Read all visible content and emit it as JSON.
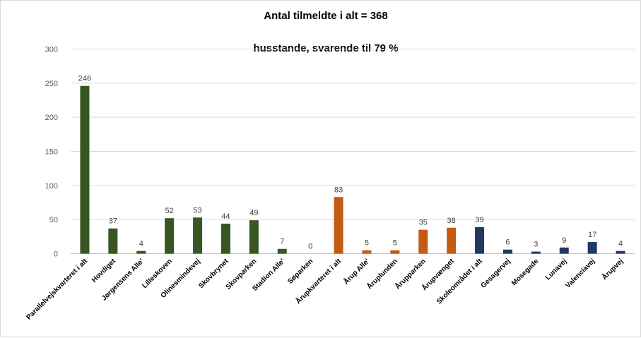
{
  "chart_data": {
    "type": "bar",
    "title": "Antal tilmeldte i alt = 368",
    "subtitle": "husstande, svarende til 79 %",
    "xlabel": "",
    "ylabel": "",
    "ylim": [
      0,
      300
    ],
    "yticks": [
      "0",
      "50",
      "100",
      "150",
      "200",
      "250",
      "300"
    ],
    "grid": true,
    "categories": [
      "Parallelvejskvarteret i alt",
      "Hovdiget",
      "Jørgensens Alle'",
      "Lilleskoven",
      "Olinesmindevej",
      "Skovbrynet",
      "Skovparken",
      "Stadion Alle'",
      "Søparken",
      "Årupkvarteret i alt",
      "Årup Alle'",
      "Åruplunden",
      "Årupparken",
      "Årupvænget",
      "Skoleområdet i alt",
      "Gesagervej",
      "Mosegade",
      "Lunavej",
      "Valenciavej",
      "Årupvej"
    ],
    "values": [
      246,
      37,
      4,
      52,
      53,
      44,
      49,
      7,
      0,
      83,
      5,
      5,
      35,
      38,
      39,
      6,
      3,
      9,
      17,
      4
    ],
    "data_labels": [
      "246",
      "37",
      "4",
      "52",
      "53",
      "44",
      "49",
      "7",
      "0",
      "83",
      "5",
      "5",
      "35",
      "38",
      "39",
      "6",
      "3",
      "9",
      "17",
      "4"
    ],
    "bar_colors": [
      "#375623",
      "#375623",
      "#375623",
      "#375623",
      "#375623",
      "#375623",
      "#375623",
      "#375623",
      "#375623",
      "#c55a11",
      "#c55a11",
      "#c55a11",
      "#c55a11",
      "#c55a11",
      "#203864",
      "#203864",
      "#203864",
      "#203864",
      "#203864",
      "#203864"
    ],
    "colors": {
      "grid": "#d9d9d9",
      "axis": "#bfbfbf"
    }
  }
}
